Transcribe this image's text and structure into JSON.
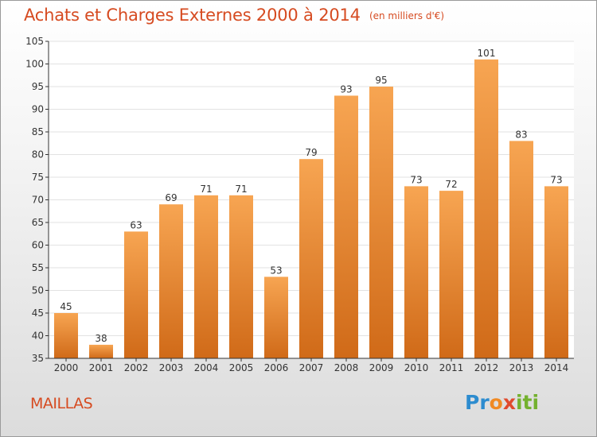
{
  "title": "Achats et Charges Externes 2000 à 2014",
  "subtitle": "(en milliers d'€)",
  "commune": "MAILLAS",
  "logo": {
    "p1": "Pr",
    "p2": "o",
    "p3": "x",
    "p4": "iti"
  },
  "colors": {
    "title": "#d64b21",
    "bar_top": "#f7a552",
    "bar_bottom": "#d06a18",
    "grid": "#e2e2e2",
    "axis": "#333333"
  },
  "chart_data": {
    "type": "bar",
    "title": "Achats et Charges Externes 2000 à 2014",
    "subtitle": "(en milliers d'€)",
    "categories": [
      "2000",
      "2001",
      "2002",
      "2003",
      "2004",
      "2005",
      "2006",
      "2007",
      "2008",
      "2009",
      "2010",
      "2011",
      "2012",
      "2013",
      "2014"
    ],
    "values": [
      45,
      38,
      63,
      69,
      71,
      71,
      53,
      79,
      93,
      95,
      73,
      72,
      101,
      83,
      73
    ],
    "ylim": [
      35,
      105
    ],
    "yticks": [
      35,
      40,
      45,
      50,
      55,
      60,
      65,
      70,
      75,
      80,
      85,
      90,
      95,
      100,
      105
    ],
    "grid": true,
    "data_labels": true
  }
}
